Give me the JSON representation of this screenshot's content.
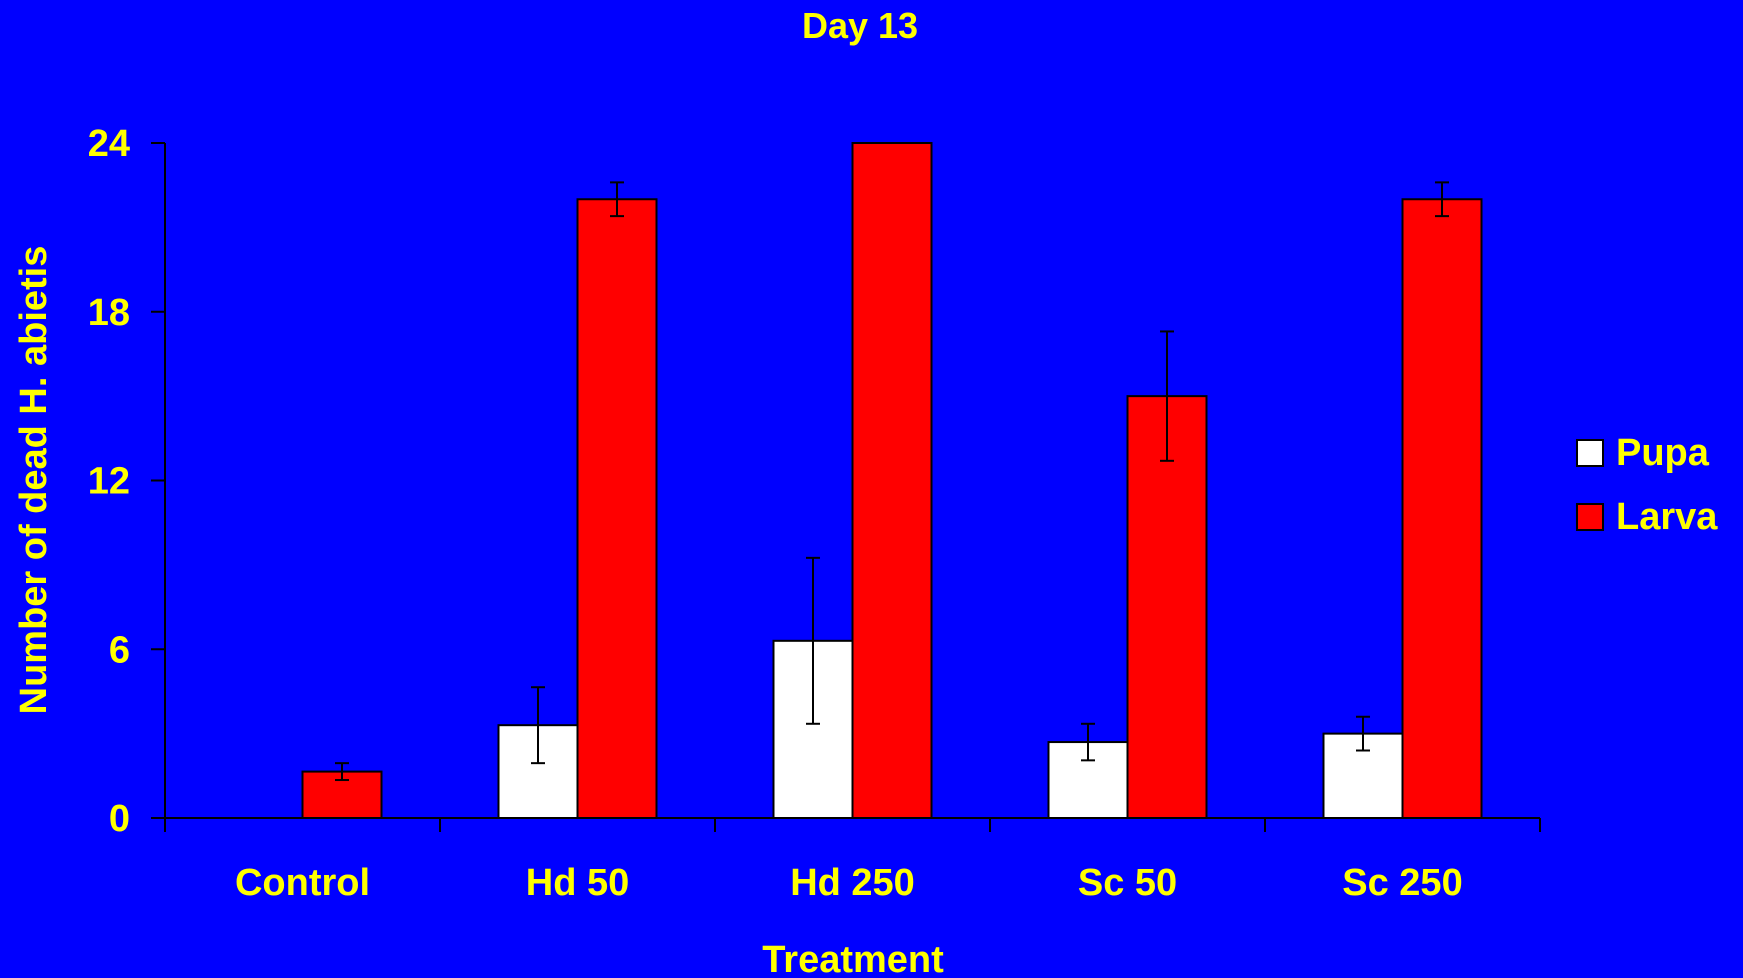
{
  "chart_data": {
    "type": "bar",
    "title": "Day 13",
    "xlabel": "Treatment",
    "ylabel": "Number of dead H. abietis",
    "categories": [
      "Control",
      "Hd 50",
      "Hd 250",
      "Sc 50",
      "Sc 250"
    ],
    "ylim": [
      0,
      24
    ],
    "yticks": [
      0,
      6,
      12,
      18,
      24
    ],
    "grid": false,
    "legend_position": "right",
    "series": [
      {
        "name": "Pupa",
        "color": "#FFFFFF",
        "values": [
          0,
          3.3,
          6.3,
          2.7,
          3.0
        ],
        "errors": [
          0,
          1.35,
          2.95,
          0.65,
          0.6
        ]
      },
      {
        "name": "Larva",
        "color": "#FF0000",
        "values": [
          1.65,
          22.0,
          24.0,
          15.0,
          22.0
        ],
        "errors": [
          0.3,
          0.6,
          0,
          2.3,
          0.6
        ]
      }
    ]
  },
  "colors": {
    "background": "#0000FF",
    "text": "#FFFF00",
    "axis": "#000000"
  }
}
